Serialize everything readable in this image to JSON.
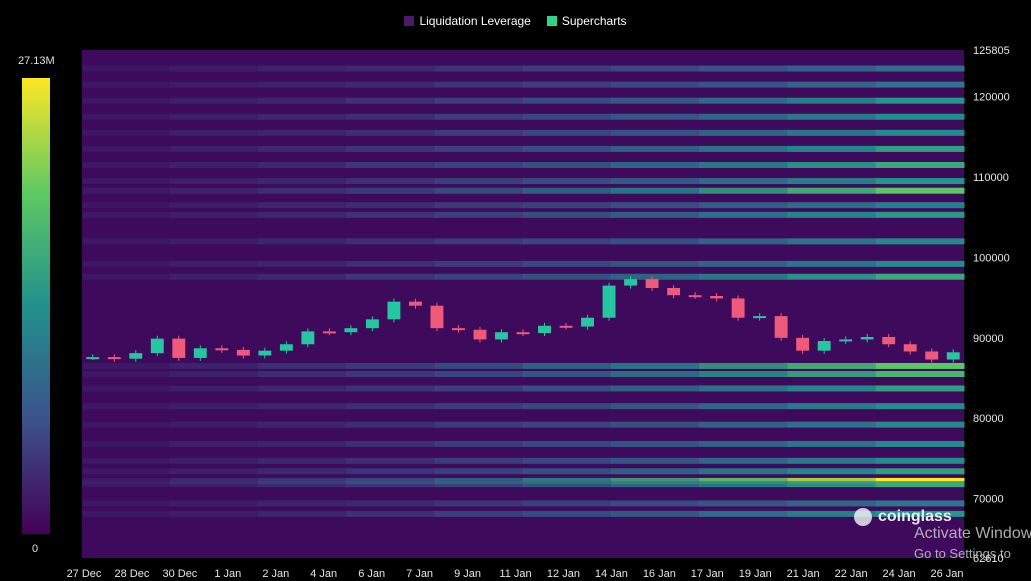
{
  "legend": {
    "items": [
      {
        "label": "Liquidation Leverage",
        "color": "#4b1a6b"
      },
      {
        "label": "Supercharts",
        "color": "#2fd58a"
      }
    ]
  },
  "colorbar": {
    "max_label": "27.13M",
    "min_label": "0",
    "colors": [
      "#fde725",
      "#5ec962",
      "#21918c",
      "#3b528b",
      "#440154"
    ]
  },
  "watermark": {
    "text": "coinglass"
  },
  "windows_notice": {
    "line1": "Activate Windows",
    "line2": "Go to Settings to"
  },
  "chart_data": {
    "type": "heatmap",
    "title": "",
    "xlabel": "",
    "ylabel": "",
    "x_ticks": [
      "27 Dec",
      "28 Dec",
      "30 Dec",
      "1 Jan",
      "2 Jan",
      "4 Jan",
      "6 Jan",
      "7 Jan",
      "9 Jan",
      "11 Jan",
      "12 Jan",
      "14 Jan",
      "16 Jan",
      "17 Jan",
      "19 Jan",
      "21 Jan",
      "22 Jan",
      "24 Jan",
      "26 Jan"
    ],
    "y_ticks": [
      125805,
      120000,
      110000,
      100000,
      90000,
      80000,
      70000,
      62610
    ],
    "ylim": [
      62610,
      125805
    ],
    "price_series": {
      "name": "",
      "values": [
        87600,
        87400,
        88100,
        89900,
        87500,
        88700,
        88500,
        87800,
        88400,
        89200,
        90800,
        90700,
        91200,
        92300,
        94500,
        94000,
        91200,
        91000,
        89800,
        90700,
        90600,
        91500,
        91400,
        92500,
        96500,
        97300,
        96200,
        95300,
        95200,
        94900,
        92500,
        92700,
        90000,
        88400,
        89600,
        89800,
        90100,
        89200,
        88300,
        87300,
        88200
      ]
    },
    "liquidation_bands": [
      {
        "price": 72200,
        "intensity": 1.0
      },
      {
        "price": 71800,
        "intensity": 0.55
      },
      {
        "price": 73400,
        "intensity": 0.5
      },
      {
        "price": 74700,
        "intensity": 0.42
      },
      {
        "price": 76800,
        "intensity": 0.4
      },
      {
        "price": 79200,
        "intensity": 0.38
      },
      {
        "price": 81500,
        "intensity": 0.42
      },
      {
        "price": 83700,
        "intensity": 0.5
      },
      {
        "price": 85500,
        "intensity": 0.62
      },
      {
        "price": 86500,
        "intensity": 0.7
      },
      {
        "price": 68100,
        "intensity": 0.45
      },
      {
        "price": 69400,
        "intensity": 0.3
      },
      {
        "price": 97600,
        "intensity": 0.55
      },
      {
        "price": 99200,
        "intensity": 0.4
      },
      {
        "price": 102000,
        "intensity": 0.38
      },
      {
        "price": 105300,
        "intensity": 0.48
      },
      {
        "price": 106500,
        "intensity": 0.35
      },
      {
        "price": 108300,
        "intensity": 0.7
      },
      {
        "price": 109500,
        "intensity": 0.45
      },
      {
        "price": 111500,
        "intensity": 0.55
      },
      {
        "price": 113500,
        "intensity": 0.5
      },
      {
        "price": 115500,
        "intensity": 0.4
      },
      {
        "price": 117500,
        "intensity": 0.42
      },
      {
        "price": 119500,
        "intensity": 0.45
      },
      {
        "price": 121500,
        "intensity": 0.3
      },
      {
        "price": 123500,
        "intensity": 0.28
      }
    ]
  }
}
